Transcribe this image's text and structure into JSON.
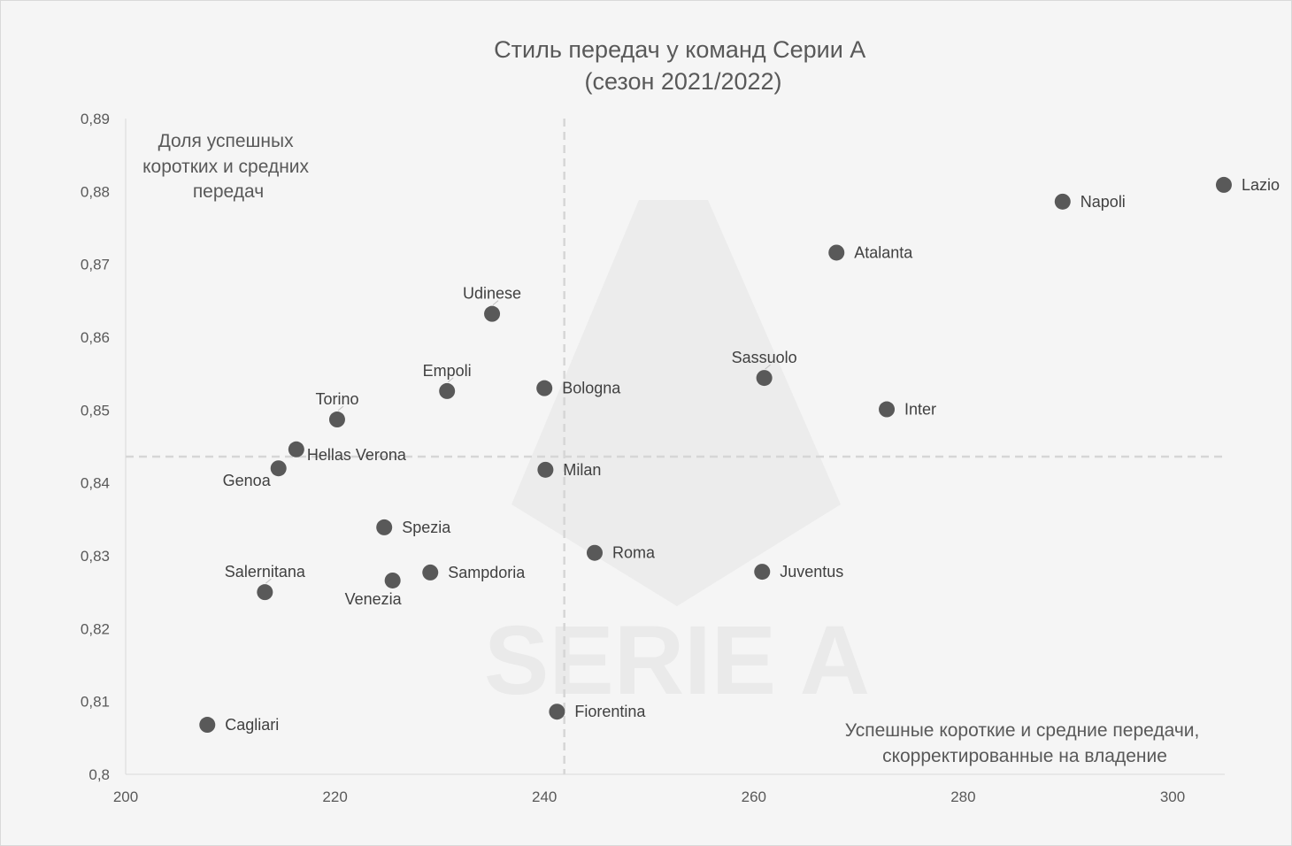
{
  "chart_data": {
    "type": "scatter",
    "title": [
      "Стиль передач у команд Серии А",
      "(сезон 2021/2022)"
    ],
    "xlabel": [
      "Успешные короткие и средние передачи,",
      "скорректированные на владение"
    ],
    "ylabel": [
      "Доля успешных",
      "коротких и средних",
      "передач"
    ],
    "xlim": [
      200,
      305
    ],
    "ylim": [
      0.8,
      0.89
    ],
    "xticks": [
      {
        "value": 200,
        "label": "200"
      },
      {
        "value": 220,
        "label": "220"
      },
      {
        "value": 240,
        "label": "240"
      },
      {
        "value": 260,
        "label": "260"
      },
      {
        "value": 280,
        "label": "280"
      },
      {
        "value": 300,
        "label": "300"
      }
    ],
    "yticks": [
      {
        "value": 0.8,
        "label": "0,8"
      },
      {
        "value": 0.81,
        "label": "0,81"
      },
      {
        "value": 0.82,
        "label": "0,82"
      },
      {
        "value": 0.83,
        "label": "0,83"
      },
      {
        "value": 0.84,
        "label": "0,84"
      },
      {
        "value": 0.85,
        "label": "0,85"
      },
      {
        "value": 0.86,
        "label": "0,86"
      },
      {
        "value": 0.87,
        "label": "0,87"
      },
      {
        "value": 0.88,
        "label": "0,88"
      },
      {
        "value": 0.89,
        "label": "0,89"
      }
    ],
    "reference_lines": {
      "x": 241.9,
      "y": 0.8436
    },
    "grid": false,
    "marker_color": "#595959",
    "points": [
      {
        "name": "Lazio",
        "x": 304.9,
        "y": 0.8809,
        "label_pos": "right"
      },
      {
        "name": "Napoli",
        "x": 289.5,
        "y": 0.8786,
        "label_pos": "right"
      },
      {
        "name": "Atalanta",
        "x": 267.9,
        "y": 0.8716,
        "label_pos": "right"
      },
      {
        "name": "Udinese",
        "x": 235.0,
        "y": 0.8632,
        "label_pos": "above"
      },
      {
        "name": "Sassuolo",
        "x": 261.0,
        "y": 0.8544,
        "label_pos": "above"
      },
      {
        "name": "Bologna",
        "x": 240.0,
        "y": 0.853,
        "label_pos": "right"
      },
      {
        "name": "Empoli",
        "x": 230.7,
        "y": 0.8526,
        "label_pos": "above"
      },
      {
        "name": "Inter",
        "x": 272.7,
        "y": 0.8501,
        "label_pos": "right"
      },
      {
        "name": "Torino",
        "x": 220.2,
        "y": 0.8487,
        "label_pos": "above"
      },
      {
        "name": "Hellas Verona",
        "x": 216.3,
        "y": 0.8446,
        "label_pos": "right-below"
      },
      {
        "name": "Genoa",
        "x": 214.6,
        "y": 0.842,
        "label_pos": "left-below"
      },
      {
        "name": "Milan",
        "x": 240.1,
        "y": 0.8418,
        "label_pos": "right"
      },
      {
        "name": "Spezia",
        "x": 224.7,
        "y": 0.8339,
        "label_pos": "right"
      },
      {
        "name": "Roma",
        "x": 244.8,
        "y": 0.8304,
        "label_pos": "right"
      },
      {
        "name": "Juventus",
        "x": 260.8,
        "y": 0.8278,
        "label_pos": "right"
      },
      {
        "name": "Sampdoria",
        "x": 229.1,
        "y": 0.8277,
        "label_pos": "right"
      },
      {
        "name": "Venezia",
        "x": 225.5,
        "y": 0.8266,
        "label_pos": "below"
      },
      {
        "name": "Salernitana",
        "x": 213.3,
        "y": 0.825,
        "label_pos": "above"
      },
      {
        "name": "Fiorentina",
        "x": 241.2,
        "y": 0.8086,
        "label_pos": "right"
      },
      {
        "name": "Cagliari",
        "x": 207.8,
        "y": 0.8068,
        "label_pos": "right"
      }
    ]
  },
  "watermark": {
    "text": "SERIE A"
  }
}
